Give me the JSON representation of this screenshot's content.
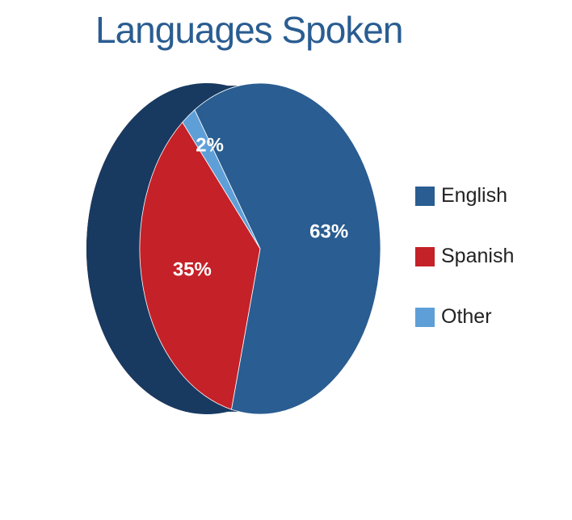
{
  "chart_data": {
    "type": "pie",
    "title": "Languages Spoken",
    "categories": [
      "English",
      "Spanish",
      "Other"
    ],
    "values": [
      63,
      35,
      2
    ],
    "labels": [
      "63%",
      "35%",
      "2%"
    ],
    "colors": [
      "#2a5d91",
      "#c52128",
      "#5f9fd8"
    ],
    "side_colors": [
      "#183a61",
      "#7d0c10",
      "#3f78ab"
    ],
    "legend_position": "right",
    "three_d": true
  }
}
